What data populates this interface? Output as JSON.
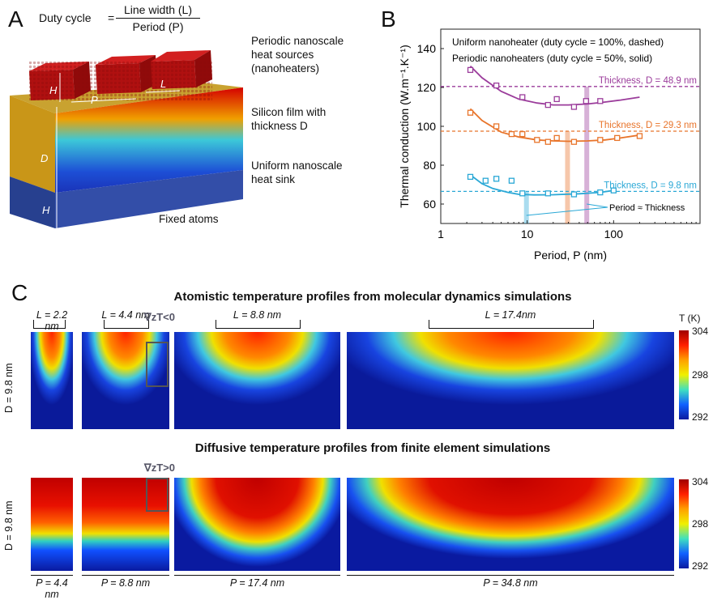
{
  "panel_a": {
    "letter": "A",
    "duty_cycle_label": "Duty cycle",
    "equals": "=",
    "numerator": "Line width (L)",
    "denominator": "Period (P)",
    "heat_sources": [
      "Periodic nanoscale",
      "heat sources",
      "(nanoheaters)"
    ],
    "silicon_film": [
      "Silicon film with",
      "thickness D"
    ],
    "heat_sink": [
      "Uniform nanoscale",
      "heat sink"
    ],
    "fixed_atoms": "Fixed atoms",
    "dim_H": "H",
    "dim_P": "P",
    "dim_L": "L",
    "dim_D": "D",
    "dim_H2": "H"
  },
  "panel_b": {
    "letter": "B",
    "legend_line1": "Uniform nanoheater (duty cycle = 100%, dashed)",
    "legend_line2": "Periodic nanoheaters (duty cycle = 50%, solid)",
    "annotation_period": "Period ≈ Thickness",
    "chart_data": {
      "type": "scatter",
      "xlabel": "Period, P (nm)",
      "ylabel": "Thermal conduction (W.m⁻¹.K⁻¹)",
      "xscale": "log",
      "xlim": [
        1,
        1000
      ],
      "ylim": [
        50,
        150
      ],
      "xticks": [
        "1",
        "10",
        "100"
      ],
      "yticks": [
        "60",
        "80",
        "100",
        "120",
        "140"
      ],
      "series": [
        {
          "name": "Thickness, D = 48.9 nm",
          "color": "#9b3c9b",
          "uniform_value": 120.5,
          "x": [
            2.2,
            4.4,
            8.8,
            17.4,
            22,
            34.8,
            48,
            70
          ],
          "y": [
            129,
            121,
            115,
            111,
            114,
            110,
            113,
            113
          ],
          "fit_x": [
            2.2,
            3,
            5,
            8,
            13,
            20,
            30,
            50,
            80,
            120,
            200
          ],
          "fit_y": [
            131,
            125,
            118,
            114,
            112,
            111,
            111,
            111.5,
            112.5,
            113.5,
            115
          ]
        },
        {
          "name": "Thickness, D = 29.3 nm",
          "color": "#e8742a",
          "uniform_value": 97.5,
          "x": [
            2.2,
            4.4,
            6.6,
            8.8,
            13,
            17.4,
            22,
            34.8,
            70,
            110,
            200
          ],
          "y": [
            107,
            100,
            96,
            96,
            93,
            92,
            94,
            92,
            93,
            94,
            95
          ],
          "fit_x": [
            2.2,
            3,
            5,
            8,
            13,
            20,
            30,
            50,
            80,
            120,
            200
          ],
          "fit_y": [
            109,
            103,
            97,
            94.5,
            93,
            92.5,
            92.3,
            92.5,
            93,
            94,
            95.5
          ]
        },
        {
          "name": "Thickness, D = 9.8 nm",
          "color": "#2aa8d6",
          "uniform_value": 66.5,
          "x": [
            2.2,
            3.3,
            4.4,
            6.6,
            8.8,
            17.4,
            34.8,
            70,
            100
          ],
          "y": [
            74,
            72,
            73,
            72,
            65.5,
            65.5,
            65,
            66,
            67
          ],
          "fit_x": [
            2.2,
            3,
            4,
            6,
            8,
            12,
            20,
            40,
            70,
            100
          ],
          "fit_y": [
            75,
            70.5,
            68,
            66,
            65,
            64.7,
            64.8,
            65.3,
            66,
            67
          ]
        }
      ],
      "highlight_bands_x": [
        9.8,
        29.3,
        48.9
      ]
    }
  },
  "panel_c": {
    "letter": "C",
    "md_title": "Atomistic temperature profiles from molecular dynamics simulations",
    "fe_title": "Diffusive temperature profiles from finite element simulations",
    "md_labels": [
      "L = 2.2 nm",
      "L = 4.4 nm",
      "L = 8.8 nm",
      "L = 17.4nm"
    ],
    "grad_lt": "∇zT<0",
    "grad_gt": "∇zT>0",
    "d_label": "D = 9.8 nm",
    "p_labels": [
      "P = 4.4 nm",
      "P = 8.8 nm",
      "P = 17.4 nm",
      "P = 34.8 nm"
    ],
    "colorbar_title": "T (K)",
    "colorbar_ticks": [
      "304",
      "298",
      "292"
    ]
  }
}
